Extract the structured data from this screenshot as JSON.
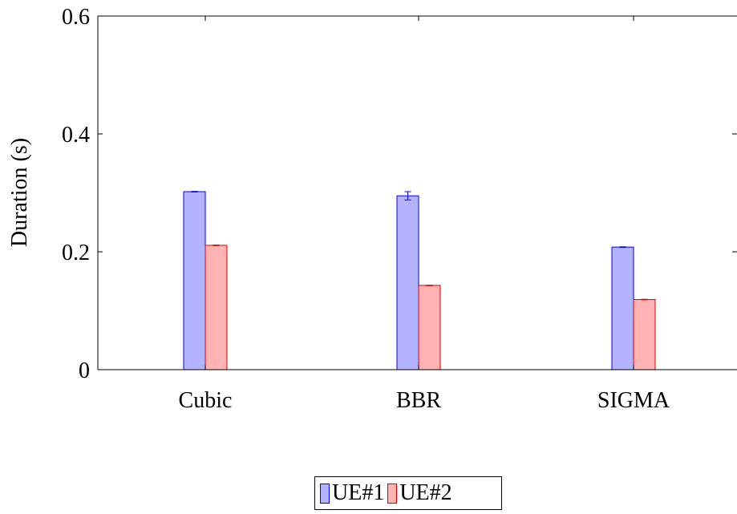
{
  "chart_data": {
    "type": "bar",
    "title": "",
    "xlabel": "",
    "ylabel": "Duration (s)",
    "categories": [
      "Cubic",
      "BBR",
      "SIGMA"
    ],
    "ylim": [
      0,
      0.6
    ],
    "yticks": [
      0,
      0.2,
      0.4,
      0.6
    ],
    "ytick_labels": [
      "0",
      "0.2",
      "0.4",
      "0.6"
    ],
    "grid": false,
    "legend_position": "bottom",
    "series": [
      {
        "name": "UE#1",
        "values": [
          0.302,
          0.295,
          0.208
        ],
        "errors": [
          0.0005,
          0.007,
          0.0005
        ],
        "fill": "#b3b3ff",
        "stroke": "#0000ee"
      },
      {
        "name": "UE#2",
        "values": [
          0.211,
          0.143,
          0.119
        ],
        "errors": [
          0.0005,
          0.0005,
          0.0005
        ],
        "fill": "#ffb3b3",
        "stroke": "#dd0000"
      }
    ]
  }
}
